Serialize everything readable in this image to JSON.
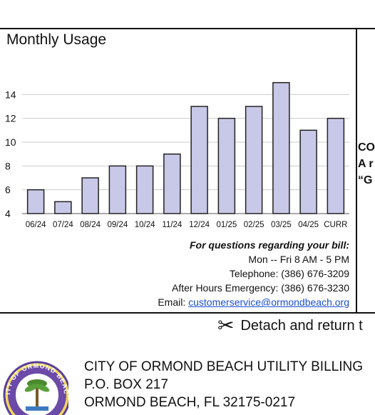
{
  "chart_data": {
    "type": "bar",
    "title": "Monthly Usage",
    "categories": [
      "06/24",
      "07/24",
      "08/24",
      "09/24",
      "10/24",
      "11/24",
      "12/24",
      "01/25",
      "02/25",
      "03/25",
      "04/25",
      "CURR"
    ],
    "values": [
      6,
      5,
      7,
      8,
      8,
      9,
      13,
      12,
      13,
      15,
      11,
      12
    ],
    "yticks": [
      4,
      6,
      8,
      10,
      12,
      14
    ],
    "ylim": [
      4,
      15.7
    ],
    "grid": "horizontal",
    "bar_color": "#c8c8e8",
    "bar_stroke": "#222222"
  },
  "side_notice": [
    "CO",
    "A r",
    "“G"
  ],
  "contact": {
    "question": "For questions regarding your bill:",
    "hours": "Mon -- Fri 8 AM - 5 PM",
    "telephone": "Telephone: (386) 676-3209",
    "emergency": "After Hours Emergency: (386) 676-3230",
    "email_label": "Email:",
    "email": "customerservice@ormondbeach.org"
  },
  "detach": {
    "icon": "scissors-icon",
    "text": "Detach and return t"
  },
  "seal": {
    "text": "CITY OF ORMOND BEACH",
    "icon": "city-seal-icon"
  },
  "address": {
    "line1": "CITY OF ORMOND BEACH UTILITY BILLING",
    "line2": "P.O. BOX 217",
    "line3": "ORMOND BEACH, FL 32175-0217"
  }
}
